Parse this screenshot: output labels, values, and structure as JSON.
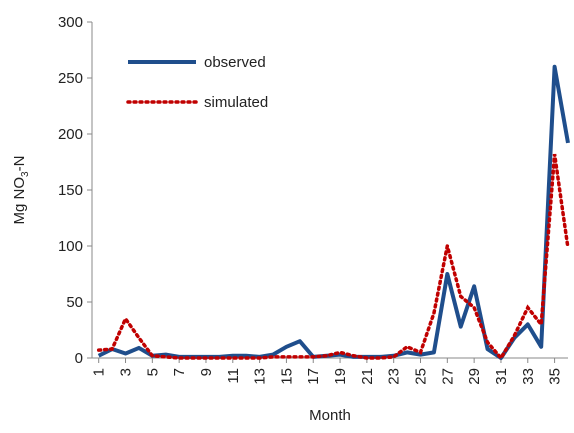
{
  "chart_data": {
    "type": "line",
    "x": [
      1,
      2,
      3,
      4,
      5,
      6,
      7,
      8,
      9,
      10,
      11,
      12,
      13,
      14,
      15,
      16,
      17,
      18,
      19,
      20,
      21,
      22,
      23,
      24,
      25,
      26,
      27,
      28,
      29,
      30,
      31,
      32,
      33,
      34,
      35,
      36
    ],
    "series": [
      {
        "name": "observed",
        "color": "#1f4e8c",
        "style": "solid",
        "values": [
          2,
          8,
          4,
          9,
          2,
          3,
          1,
          1,
          1,
          1,
          2,
          2,
          1,
          3,
          10,
          15,
          1,
          2,
          3,
          1,
          1,
          1,
          2,
          5,
          3,
          5,
          75,
          28,
          64,
          8,
          0,
          18,
          30,
          10,
          260,
          192
        ]
      },
      {
        "name": "simulated",
        "color": "#c00000",
        "style": "dotted",
        "values": [
          7,
          8,
          35,
          18,
          2,
          1,
          0,
          0,
          0,
          0,
          0,
          0,
          0,
          1,
          1,
          1,
          1,
          2,
          5,
          2,
          0,
          0,
          1,
          10,
          5,
          40,
          100,
          55,
          45,
          14,
          0,
          20,
          45,
          30,
          182,
          98
        ]
      }
    ],
    "xlabel": "Month",
    "ylabel": [
      "Mg NO",
      "3",
      "-N"
    ],
    "xlim": [
      0.5,
      36
    ],
    "ylim": [
      0,
      300
    ],
    "xticks": [
      1,
      3,
      5,
      7,
      9,
      11,
      13,
      15,
      17,
      19,
      21,
      23,
      25,
      27,
      29,
      31,
      33,
      35
    ],
    "yticks": [
      0,
      50,
      100,
      150,
      200,
      250,
      300
    ],
    "grid": false,
    "legend": "upper left"
  }
}
